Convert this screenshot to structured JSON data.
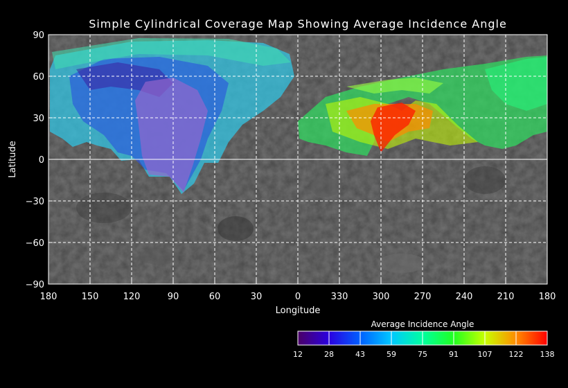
{
  "title": "Simple Cylindrical Coverage Map Showing Average Incidence Angle",
  "axes": {
    "xlabel": "Longitude",
    "ylabel": "Latitude",
    "x_ticks": [
      "180",
      "150",
      "120",
      "90",
      "60",
      "30",
      "0",
      "330",
      "300",
      "270",
      "240",
      "210",
      "180"
    ],
    "y_ticks": [
      "90",
      "60",
      "30",
      "0",
      "−30",
      "−60",
      "−90"
    ],
    "lat_range": [
      -90,
      90
    ],
    "lon_range": [
      "180",
      "180"
    ],
    "grid": true
  },
  "colorbar": {
    "title": "Average Incidence Angle",
    "ticks": [
      "12",
      "28",
      "43",
      "59",
      "75",
      "91",
      "107",
      "122",
      "138"
    ],
    "range": [
      12,
      138
    ],
    "stops": [
      "#4b0066",
      "#2a00e0",
      "#0060ff",
      "#00c8ff",
      "#00ffa0",
      "#20ff20",
      "#c8ff00",
      "#ff8c00",
      "#ff0000"
    ]
  },
  "colors": {
    "background": "#000000",
    "basemap": "#4a4a4a",
    "grid": "#ffffff"
  }
}
